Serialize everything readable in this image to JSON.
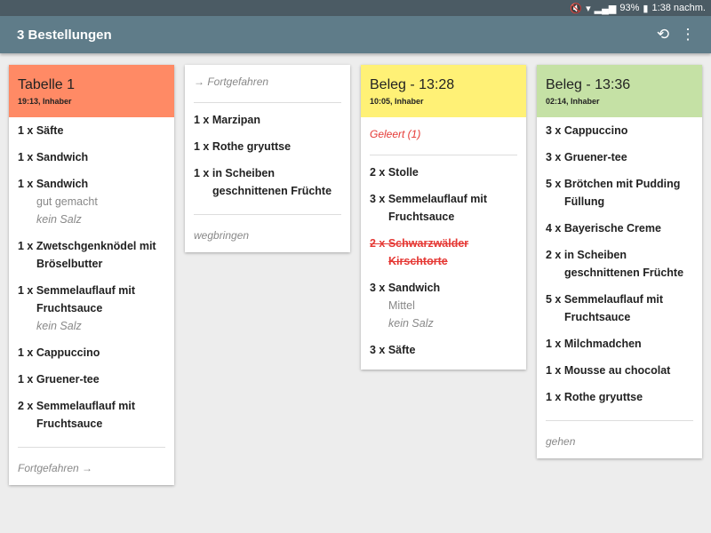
{
  "status": {
    "battery": "93%",
    "time": "1:38 nachm."
  },
  "appbar": {
    "title": "3 Bestellungen",
    "icons": [
      "history-icon",
      "more-vert-icon"
    ]
  },
  "cards": [
    {
      "header": {
        "title": "Tabelle 1",
        "subtitle": "19:13, Inhaber",
        "color": "#ff8a65"
      },
      "items": [
        {
          "lines": [
            "1 x Säfte"
          ]
        },
        {
          "lines": [
            "1 x Sandwich"
          ]
        },
        {
          "lines": [
            "1 x Sandwich"
          ],
          "subs": [
            {
              "text": "gut gemacht"
            },
            {
              "text": "kein Salz",
              "italic": true
            }
          ]
        },
        {
          "lines": [
            "1 x Zwetschgenknödel mit",
            "Bröselbutter"
          ]
        },
        {
          "lines": [
            "1 x Semmelauflauf mit",
            "Fruchtsauce"
          ],
          "subs": [
            {
              "text": "kein Salz",
              "italic": true
            }
          ]
        },
        {
          "lines": [
            "1 x Cappuccino"
          ]
        },
        {
          "lines": [
            "1 x Gruener-tee"
          ]
        },
        {
          "lines": [
            "2 x Semmelauflauf mit",
            "Fruchtsauce"
          ]
        }
      ],
      "footer": "Fortgefahren →"
    },
    {
      "top_note": "→ Fortgefahren",
      "items": [
        {
          "lines": [
            "1 x Marzipan"
          ]
        },
        {
          "lines": [
            "1 x Rothe gryuttse"
          ]
        },
        {
          "lines": [
            "1 x in Scheiben",
            "geschnittenen Früchte"
          ]
        }
      ],
      "footer": "wegbringen"
    },
    {
      "header": {
        "title": "Beleg - 13:28",
        "subtitle": "10:05, Inhaber",
        "color": "#fff176"
      },
      "top_note": "Geleert (1)",
      "top_note_red": true,
      "items": [
        {
          "lines": [
            "2 x Stolle"
          ]
        },
        {
          "lines": [
            "3 x Semmelauflauf mit",
            "Fruchtsauce"
          ]
        },
        {
          "lines": [
            "2 x Schwarzwälder",
            "Kirschtorte"
          ],
          "strike": true
        },
        {
          "lines": [
            "3 x Sandwich"
          ],
          "subs": [
            {
              "text": "Mittel"
            },
            {
              "text": "kein Salz",
              "italic": true
            }
          ]
        },
        {
          "lines": [
            "3 x Säfte"
          ]
        }
      ]
    },
    {
      "header": {
        "title": "Beleg - 13:36",
        "subtitle": "02:14, Inhaber",
        "color": "#c5e1a5"
      },
      "items": [
        {
          "lines": [
            "3 x Cappuccino"
          ]
        },
        {
          "lines": [
            "3 x Gruener-tee"
          ]
        },
        {
          "lines": [
            "5 x Brötchen mit Pudding",
            "Füllung"
          ]
        },
        {
          "lines": [
            "4 x Bayerische Creme"
          ]
        },
        {
          "lines": [
            "2 x in Scheiben",
            "geschnittenen Früchte"
          ]
        },
        {
          "lines": [
            "5 x Semmelauflauf mit",
            "Fruchtsauce"
          ]
        },
        {
          "lines": [
            "1 x Milchmadchen"
          ]
        },
        {
          "lines": [
            "1 x Mousse au chocolat"
          ]
        },
        {
          "lines": [
            "1 x Rothe gryuttse"
          ]
        }
      ],
      "footer": "gehen"
    }
  ]
}
